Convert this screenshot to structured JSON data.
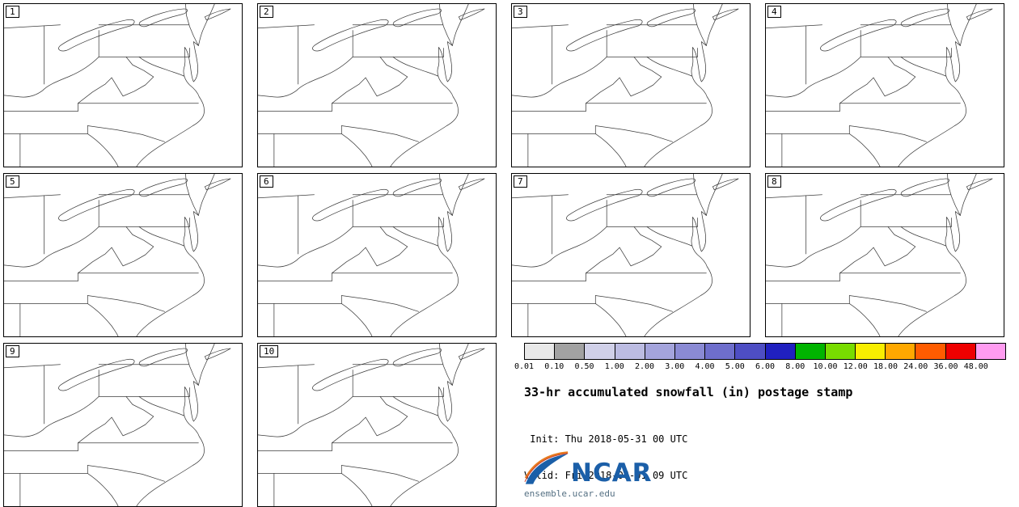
{
  "figure": {
    "title": "33-hr accumulated snowfall (in) postage stamp",
    "init_line": " Init: Thu 2018-05-31 00 UTC",
    "valid_line": "Valid: Fri 2018-06-01 09 UTC"
  },
  "panels": [
    {
      "label": "1"
    },
    {
      "label": "2"
    },
    {
      "label": "3"
    },
    {
      "label": "4"
    },
    {
      "label": "5"
    },
    {
      "label": "6"
    },
    {
      "label": "7"
    },
    {
      "label": "8"
    },
    {
      "label": "9"
    },
    {
      "label": "10"
    }
  ],
  "colorbar": {
    "units": "in",
    "ticks": [
      "0.01",
      "0.10",
      "0.50",
      "1.00",
      "2.00",
      "3.00",
      "4.00",
      "5.00",
      "6.00",
      "8.00",
      "10.00",
      "12.00",
      "18.00",
      "24.00",
      "36.00",
      "48.00"
    ],
    "segment_colors": [
      "#e8e8e8",
      "#a2a2a2",
      "#d0d0e8",
      "#bcbce2",
      "#a4a4dc",
      "#8a8ad4",
      "#6e6ecc",
      "#4e4ec4",
      "#2020c0",
      "#00b400",
      "#78dc00",
      "#f8ee00",
      "#ffa800",
      "#ff5c00",
      "#ee0000",
      "#ff9cf0"
    ]
  },
  "logo": {
    "name": "NCAR",
    "url": "ensemble.ucar.edu",
    "brand_blue": "#1b5fa8",
    "brand_orange": "#e87b1e"
  }
}
